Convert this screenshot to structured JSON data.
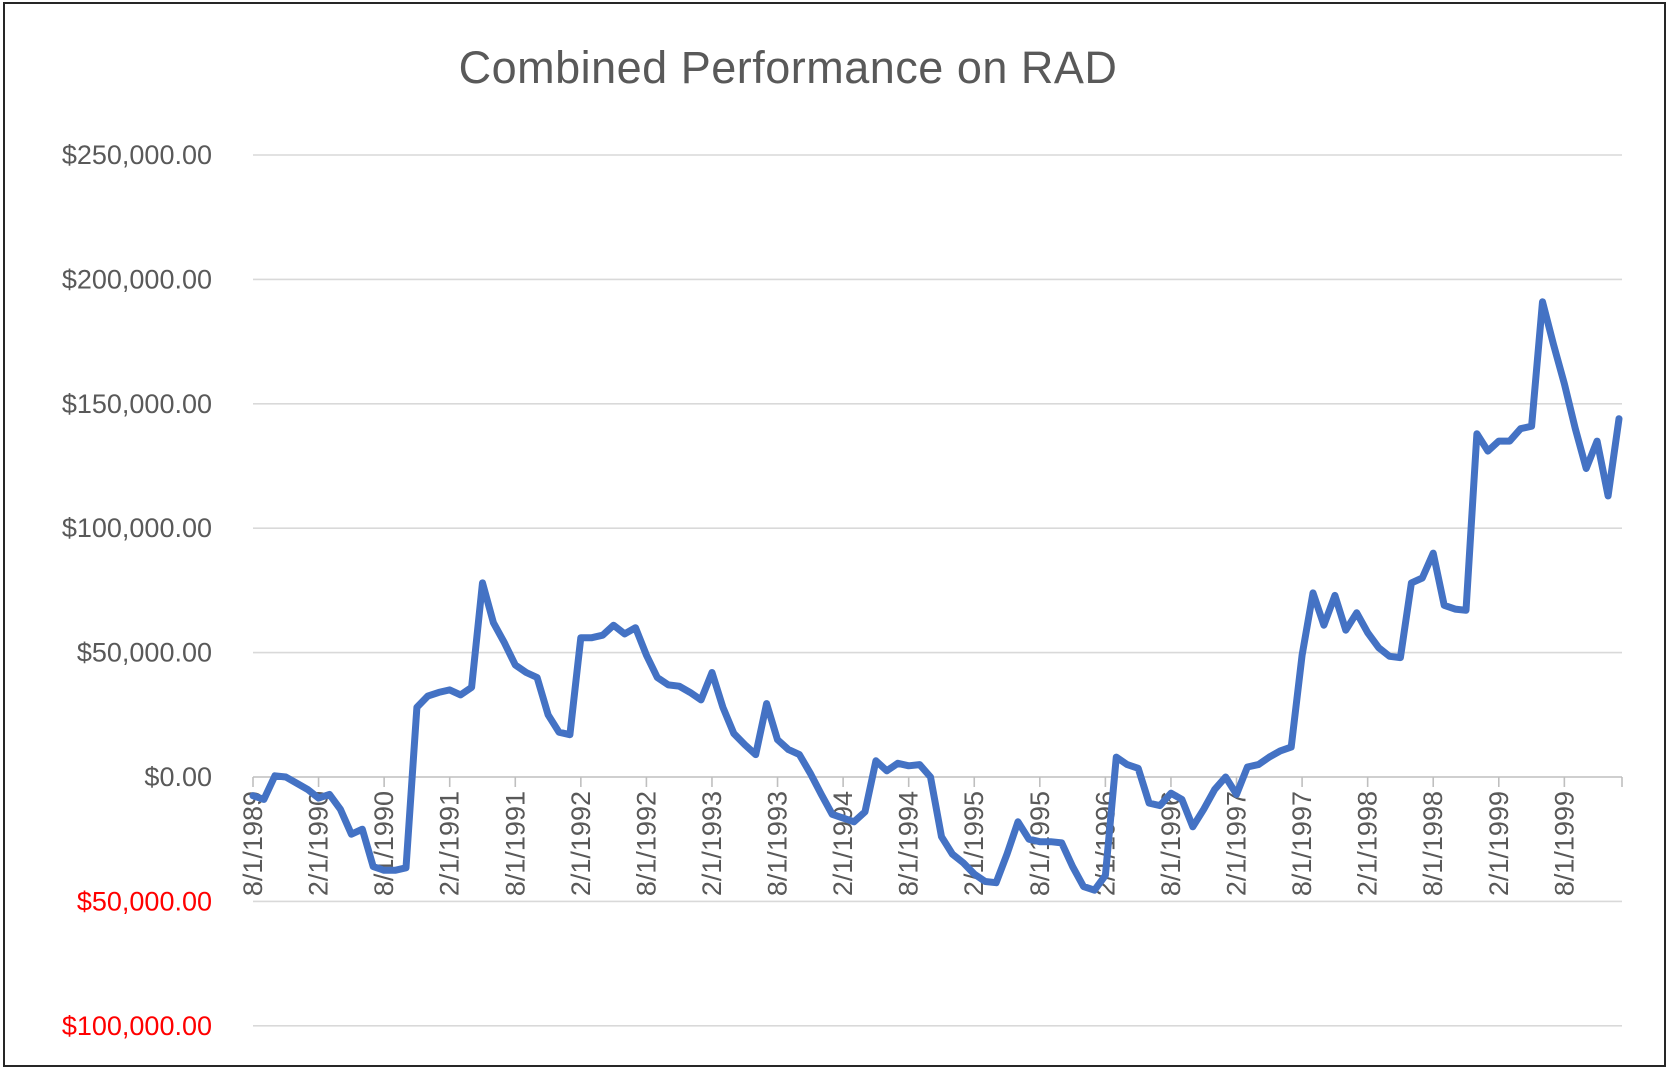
{
  "chart_data": {
    "type": "line",
    "title": "Combined Performance on RAD",
    "series_name": "Combined Performance",
    "x_start": "8/1/1989",
    "x_interval": "monthly",
    "x_tick_labels": [
      "8/1/1989",
      "2/1/1990",
      "8/1/1990",
      "2/1/1991",
      "8/1/1991",
      "2/1/1992",
      "8/1/1992",
      "2/1/1993",
      "8/1/1993",
      "2/1/1994",
      "8/1/1994",
      "2/1/1995",
      "8/1/1995",
      "2/1/1996",
      "8/1/1996",
      "2/1/1997",
      "8/1/1997",
      "2/1/1998",
      "8/1/1998",
      "2/1/1999",
      "8/1/1999"
    ],
    "x_tick_interval_months": 6,
    "ylim": [
      -100000,
      250000
    ],
    "y_ticks": [
      {
        "value": 250000,
        "text": "$250,000.00",
        "color": "#595959"
      },
      {
        "value": 200000,
        "text": "$200,000.00",
        "color": "#595959"
      },
      {
        "value": 150000,
        "text": "$150,000.00",
        "color": "#595959"
      },
      {
        "value": 100000,
        "text": "$100,000.00",
        "color": "#595959"
      },
      {
        "value": 50000,
        "text": "$50,000.00",
        "color": "#595959"
      },
      {
        "value": 0,
        "text": "$0.00",
        "color": "#595959"
      },
      {
        "value": -50000,
        "text": "$50,000.00",
        "color": "#FF0000"
      },
      {
        "value": -100000,
        "text": "$100,000.00",
        "color": "#FF0000"
      }
    ],
    "grid": true,
    "legend": "none",
    "values": [
      -7500,
      -9000,
      500,
      0,
      -2500,
      -5000,
      -8500,
      -7000,
      -13000,
      -23000,
      -21000,
      -36000,
      -37500,
      -37500,
      -36500,
      28000,
      32500,
      34000,
      35000,
      33000,
      36000,
      78000,
      62000,
      54000,
      45000,
      42000,
      40000,
      25000,
      18000,
      17000,
      56000,
      56000,
      57000,
      61000,
      57500,
      60000,
      49000,
      40000,
      37000,
      36500,
      34000,
      31000,
      42000,
      28000,
      17500,
      13000,
      9000,
      29500,
      15000,
      11000,
      9000,
      1500,
      -7000,
      -15000,
      -16500,
      -18000,
      -14000,
      6500,
      2500,
      5500,
      4500,
      5000,
      0,
      -24000,
      -31000,
      -34500,
      -39000,
      -42000,
      -42500,
      -31000,
      -18000,
      -25000,
      -26000,
      -26000,
      -26500,
      -36000,
      -44000,
      -45500,
      -39500,
      8000,
      5000,
      3500,
      -10500,
      -11500,
      -6500,
      -9000,
      -20000,
      -13000,
      -5000,
      0,
      -7000,
      4000,
      5000,
      8000,
      10500,
      12000,
      49000,
      74000,
      61000,
      73000,
      59000,
      66000,
      58000,
      52000,
      48500,
      48000,
      78000,
      80000,
      90000,
      69000,
      67500,
      67000,
      138000,
      131000,
      135000,
      135000,
      140000,
      141000,
      191000,
      174000,
      158000,
      140000,
      124000,
      135000,
      113000,
      144000
    ],
    "colors": {
      "series_line": "#4472C4",
      "title_text": "#595959",
      "axis_text": "#595959",
      "negative_axis_text": "#FF0000",
      "gridline": "#D9D9D9",
      "axis_line": "#BFBFBF",
      "chart_border": "#262626",
      "background": "#FFFFFF"
    }
  }
}
